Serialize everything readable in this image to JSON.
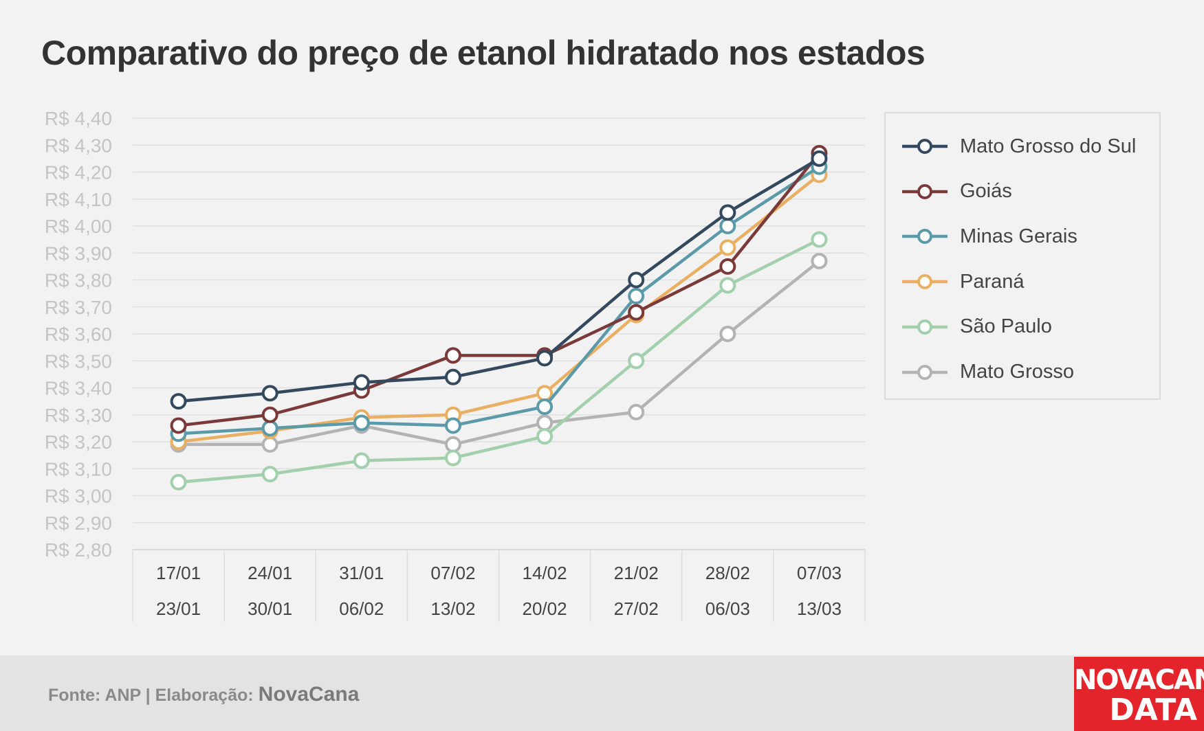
{
  "title": "Comparativo do preço de etanol hidratado nos estados",
  "footer": {
    "source": "Fonte: ANP | Elaboração: ",
    "brand": "NovaCana"
  },
  "logo": {
    "line1": "NOVACANA",
    "line2": "DATA",
    "color": "#e3242b"
  },
  "chart_data": {
    "type": "line",
    "title": "Comparativo do preço de etanol hidratado nos estados",
    "categories": [
      [
        "17/01",
        "23/01"
      ],
      [
        "24/01",
        "30/01"
      ],
      [
        "31/01",
        "06/02"
      ],
      [
        "07/02",
        "13/02"
      ],
      [
        "14/02",
        "20/02"
      ],
      [
        "21/02",
        "27/02"
      ],
      [
        "28/02",
        "06/03"
      ],
      [
        "07/03",
        "13/03"
      ]
    ],
    "y_ticks": [
      "R$ 4,40",
      "R$ 4,30",
      "R$ 4,20",
      "R$ 4,10",
      "R$ 4,00",
      "R$ 3,90",
      "R$ 3,80",
      "R$ 3,70",
      "R$ 3,60",
      "R$ 3,50",
      "R$ 3,40",
      "R$ 3,30",
      "R$ 3,20",
      "R$ 3,10",
      "R$ 3,00",
      "R$ 2,90",
      "R$ 2,80"
    ],
    "ylim": [
      2.8,
      4.4
    ],
    "grid": true,
    "legend_position": "right",
    "series": [
      {
        "name": "Mato Grosso do Sul",
        "color": "#34495e",
        "values": [
          3.35,
          3.38,
          3.42,
          3.44,
          3.51,
          3.8,
          4.05,
          4.25
        ]
      },
      {
        "name": "Goiás",
        "color": "#7b3a3a",
        "values": [
          3.26,
          3.3,
          3.39,
          3.52,
          3.52,
          3.68,
          3.85,
          4.27
        ]
      },
      {
        "name": "Minas Gerais",
        "color": "#5b9aa8",
        "values": [
          3.23,
          3.25,
          3.27,
          3.26,
          3.33,
          3.74,
          4.0,
          4.22
        ]
      },
      {
        "name": "Paraná",
        "color": "#e9b063",
        "values": [
          3.2,
          3.24,
          3.29,
          3.3,
          3.38,
          3.67,
          3.92,
          4.19
        ]
      },
      {
        "name": "São Paulo",
        "color": "#a2d0ac",
        "values": [
          3.05,
          3.08,
          3.13,
          3.14,
          3.22,
          3.5,
          3.78,
          3.95
        ]
      },
      {
        "name": "Mato Grosso",
        "color": "#b3b3b3",
        "values": [
          3.19,
          3.19,
          3.26,
          3.19,
          3.27,
          3.31,
          3.6,
          3.87
        ]
      }
    ]
  }
}
